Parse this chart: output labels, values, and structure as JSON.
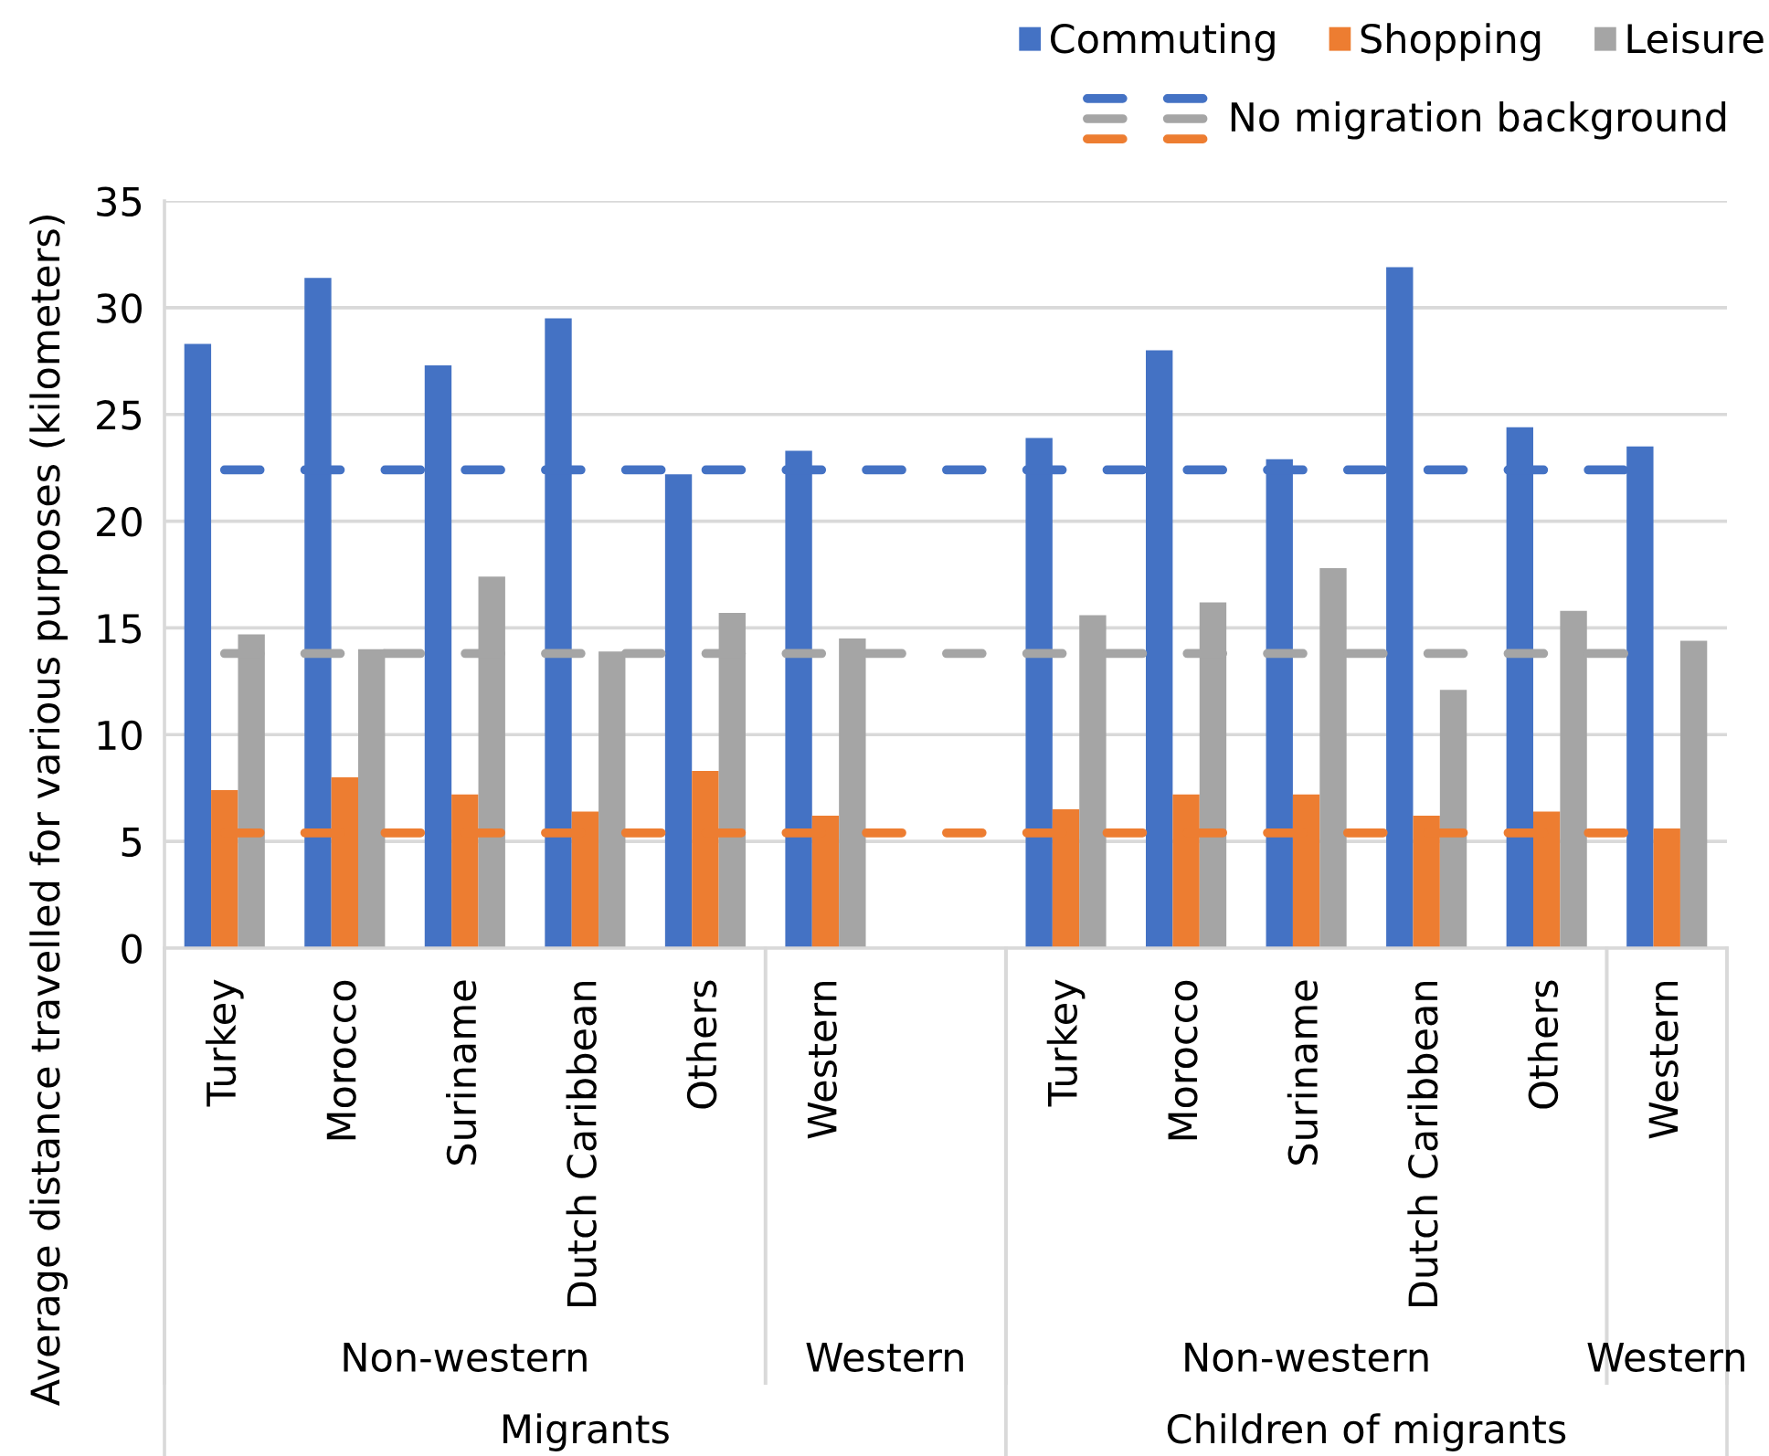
{
  "chart_data": {
    "type": "bar",
    "ylabel": "Average distance travelled for various purposes (kilometers)",
    "categories": [
      "Turkey",
      "Morocco",
      "Suriname",
      "Dutch Caribbean",
      "Others",
      "Western",
      null,
      "Turkey",
      "Morocco",
      "Suriname",
      "Dutch Caribbean",
      "Others",
      "Western"
    ],
    "series": [
      {
        "name": "Commuting",
        "color": "#4472c4",
        "values": [
          28.3,
          31.4,
          27.3,
          29.5,
          22.2,
          23.3,
          null,
          23.9,
          28.0,
          22.9,
          31.9,
          24.4,
          23.5
        ]
      },
      {
        "name": "Shopping",
        "color": "#ed7d31",
        "values": [
          7.4,
          8.0,
          7.2,
          6.4,
          8.3,
          6.2,
          null,
          6.5,
          7.2,
          7.2,
          6.2,
          6.4,
          5.6
        ]
      },
      {
        "name": "Leisure",
        "color": "#a5a5a5",
        "values": [
          14.7,
          14.0,
          17.4,
          13.9,
          15.7,
          14.5,
          null,
          15.6,
          16.2,
          17.8,
          12.1,
          15.8,
          14.4
        ]
      }
    ],
    "ylim": [
      0,
      35
    ],
    "yticks": [
      0,
      5,
      10,
      15,
      20,
      25,
      30,
      35
    ],
    "ref_lines": [
      {
        "axis": "y",
        "value": 22.4,
        "label": "No migration background",
        "color": "#4472c4",
        "line_style": "dashed"
      },
      {
        "axis": "y",
        "value": 13.8,
        "color": "#a5a5a5",
        "line_style": "dashed"
      },
      {
        "axis": "y",
        "value": 5.4,
        "color": "#ed7d31",
        "line_style": "dashed"
      }
    ],
    "annotations": [
      "Non-western",
      "Western",
      "Non-western",
      "Western",
      "Migrants",
      "Children of migrants"
    ],
    "grid": "y",
    "legend": "top right"
  }
}
